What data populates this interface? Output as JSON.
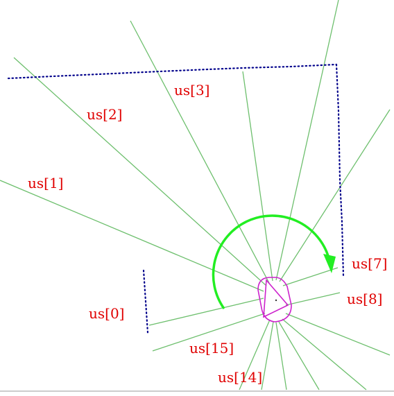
{
  "diagram": {
    "description_free": true,
    "colors": {
      "rays": "#6dbf6d",
      "labels": "#e00000",
      "scan_points": "#00008b",
      "rotation_arrow": "#22ee22",
      "robot": "#cc22cc",
      "background": "#ffffff",
      "bottom_border": "#cccccc"
    },
    "sensor_labels": [
      {
        "id": "s0",
        "text": "us[0]"
      },
      {
        "id": "s1",
        "text": "us[1]"
      },
      {
        "id": "s2",
        "text": "us[2]"
      },
      {
        "id": "s3",
        "text": "us[3]"
      },
      {
        "id": "s7",
        "text": "us[7]"
      },
      {
        "id": "s8",
        "text": "us[8]"
      },
      {
        "id": "s14",
        "text": "us[14]"
      },
      {
        "id": "s15",
        "text": "us[15]"
      }
    ],
    "icons": {
      "robot": "robot-icon",
      "rotation": "rotation-arrow-icon"
    }
  }
}
